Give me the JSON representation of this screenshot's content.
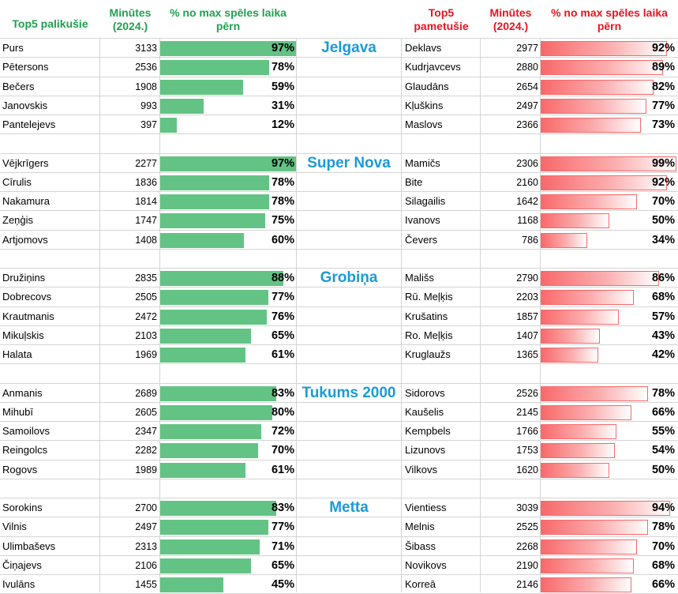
{
  "header": {
    "left_title": "Top5 palikušie",
    "left_minutes": [
      "Minūtes",
      "(2024.)"
    ],
    "left_pct": [
      "% no max spēles laika",
      "pērn"
    ],
    "right_title": [
      "Top5",
      "pametušie"
    ],
    "right_minutes": [
      "Minūtes",
      "(2024.)"
    ],
    "right_pct": [
      "% no max spēles laika",
      "pērn"
    ]
  },
  "colors": {
    "header_green": "#20a050",
    "header_red": "#e8141e",
    "team_blue": "#1c9ad6",
    "bar_green": "#63c384",
    "bar_red": "#f8696b"
  },
  "teams": [
    {
      "name": "Jelgava",
      "stayed": [
        {
          "player": "Purs",
          "minutes": "3133",
          "pct": "97%",
          "value": 97
        },
        {
          "player": "Pētersons",
          "minutes": "2536",
          "pct": "78%",
          "value": 78
        },
        {
          "player": "Bečers",
          "minutes": "1908",
          "pct": "59%",
          "value": 59
        },
        {
          "player": "Janovskis",
          "minutes": "993",
          "pct": "31%",
          "value": 31
        },
        {
          "player": "Pantelejevs",
          "minutes": "397",
          "pct": "12%",
          "value": 12
        }
      ],
      "left": [
        {
          "player": "Deklavs",
          "minutes": "2977",
          "pct": "92%",
          "value": 92
        },
        {
          "player": "Kudrjavcevs",
          "minutes": "2880",
          "pct": "89%",
          "value": 89
        },
        {
          "player": "Glaudāns",
          "minutes": "2654",
          "pct": "82%",
          "value": 82
        },
        {
          "player": "Kļuškins",
          "minutes": "2497",
          "pct": "77%",
          "value": 77
        },
        {
          "player": "Maslovs",
          "minutes": "2366",
          "pct": "73%",
          "value": 73
        }
      ]
    },
    {
      "name": "Super Nova",
      "stayed": [
        {
          "player": "Vējkrīgers",
          "minutes": "2277",
          "pct": "97%",
          "value": 97
        },
        {
          "player": "Cīrulis",
          "minutes": "1836",
          "pct": "78%",
          "value": 78
        },
        {
          "player": "Nakamura",
          "minutes": "1814",
          "pct": "78%",
          "value": 78
        },
        {
          "player": "Zeņģis",
          "minutes": "1747",
          "pct": "75%",
          "value": 75
        },
        {
          "player": "Artjomovs",
          "minutes": "1408",
          "pct": "60%",
          "value": 60
        }
      ],
      "left": [
        {
          "player": "Mamičs",
          "minutes": "2306",
          "pct": "99%",
          "value": 99
        },
        {
          "player": "Bite",
          "minutes": "2160",
          "pct": "92%",
          "value": 92
        },
        {
          "player": "Silagailis",
          "minutes": "1642",
          "pct": "70%",
          "value": 70
        },
        {
          "player": "Ivanovs",
          "minutes": "1168",
          "pct": "50%",
          "value": 50
        },
        {
          "player": "Čevers",
          "minutes": "786",
          "pct": "34%",
          "value": 34
        }
      ]
    },
    {
      "name": "Grobiņa",
      "stayed": [
        {
          "player": "Družiņins",
          "minutes": "2835",
          "pct": "88%",
          "value": 88
        },
        {
          "player": "Dobrecovs",
          "minutes": "2505",
          "pct": "77%",
          "value": 77
        },
        {
          "player": "Krautmanis",
          "minutes": "2472",
          "pct": "76%",
          "value": 76
        },
        {
          "player": "Mikuļskis",
          "minutes": "2103",
          "pct": "65%",
          "value": 65
        },
        {
          "player": "Halata",
          "minutes": "1969",
          "pct": "61%",
          "value": 61
        }
      ],
      "left": [
        {
          "player": "Mališs",
          "minutes": "2790",
          "pct": "86%",
          "value": 86
        },
        {
          "player": "Rū. Meļķis",
          "minutes": "2203",
          "pct": "68%",
          "value": 68
        },
        {
          "player": "Krušatins",
          "minutes": "1857",
          "pct": "57%",
          "value": 57
        },
        {
          "player": "Ro. Meļķis",
          "minutes": "1407",
          "pct": "43%",
          "value": 43
        },
        {
          "player": "Kruglaužs",
          "minutes": "1365",
          "pct": "42%",
          "value": 42
        }
      ]
    },
    {
      "name": "Tukums 2000",
      "stayed": [
        {
          "player": "Anmanis",
          "minutes": "2689",
          "pct": "83%",
          "value": 83
        },
        {
          "player": "Mihubī",
          "minutes": "2605",
          "pct": "80%",
          "value": 80
        },
        {
          "player": "Samoilovs",
          "minutes": "2347",
          "pct": "72%",
          "value": 72
        },
        {
          "player": "Reingolcs",
          "minutes": "2282",
          "pct": "70%",
          "value": 70
        },
        {
          "player": "Rogovs",
          "minutes": "1989",
          "pct": "61%",
          "value": 61
        }
      ],
      "left": [
        {
          "player": "Sidorovs",
          "minutes": "2526",
          "pct": "78%",
          "value": 78
        },
        {
          "player": "Kaušelis",
          "minutes": "2145",
          "pct": "66%",
          "value": 66
        },
        {
          "player": "Kempbels",
          "minutes": "1766",
          "pct": "55%",
          "value": 55
        },
        {
          "player": "Lizunovs",
          "minutes": "1753",
          "pct": "54%",
          "value": 54
        },
        {
          "player": "Vilkovs",
          "minutes": "1620",
          "pct": "50%",
          "value": 50
        }
      ]
    },
    {
      "name": "Metta",
      "stayed": [
        {
          "player": "Sorokins",
          "minutes": "2700",
          "pct": "83%",
          "value": 83
        },
        {
          "player": "Vilnis",
          "minutes": "2497",
          "pct": "77%",
          "value": 77
        },
        {
          "player": "Ulimbaševs",
          "minutes": "2313",
          "pct": "71%",
          "value": 71
        },
        {
          "player": "Čiņajevs",
          "minutes": "2106",
          "pct": "65%",
          "value": 65
        },
        {
          "player": "Ivulāns",
          "minutes": "1455",
          "pct": "45%",
          "value": 45
        }
      ],
      "left": [
        {
          "player": "Vientiess",
          "minutes": "3039",
          "pct": "94%",
          "value": 94
        },
        {
          "player": "Melnis",
          "minutes": "2525",
          "pct": "78%",
          "value": 78
        },
        {
          "player": "Šibass",
          "minutes": "2268",
          "pct": "70%",
          "value": 70
        },
        {
          "player": "Novikovs",
          "minutes": "2190",
          "pct": "68%",
          "value": 68
        },
        {
          "player": "Korreā",
          "minutes": "2146",
          "pct": "66%",
          "value": 66
        }
      ]
    }
  ]
}
